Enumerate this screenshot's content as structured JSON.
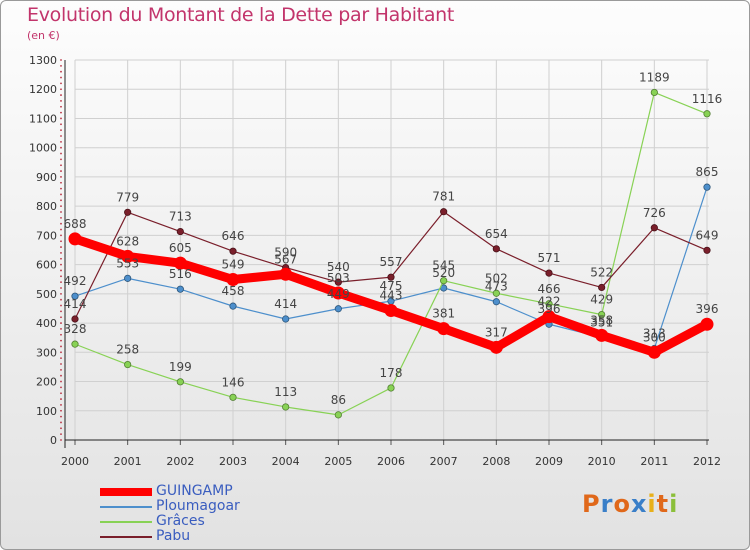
{
  "header": {
    "title": "Evolution du Montant de la Dette par Habitant",
    "subtitle": "(en €)"
  },
  "colors": {
    "title": "#c2346b",
    "axis_text": "#333333",
    "legend_text": "#3a5dbf"
  },
  "logo": {
    "text": "Proxiti",
    "letter_colors": [
      "#e0681a",
      "#3a7fc8",
      "#e0681a",
      "#3a7fc8",
      "#e8b01a",
      "#e0681a",
      "#8bbf3a"
    ]
  },
  "chart_data": {
    "type": "line",
    "x": [
      "2000",
      "2001",
      "2002",
      "2003",
      "2004",
      "2005",
      "2006",
      "2007",
      "2008",
      "2009",
      "2010",
      "2011",
      "2012"
    ],
    "ylim": [
      0,
      1300
    ],
    "yticks": [
      0,
      100,
      200,
      300,
      400,
      500,
      600,
      700,
      800,
      900,
      1000,
      1100,
      1200,
      1300
    ],
    "grid": true,
    "legend_position": "bottom-left",
    "series": [
      {
        "name": "GUINGAMP",
        "color": "#ff0000",
        "values": [
          688,
          628,
          605,
          549,
          567,
          503,
          443,
          381,
          317,
          422,
          358,
          300,
          396
        ],
        "labels": [
          "688",
          "628",
          "605",
          "549",
          "567",
          "503",
          "443",
          "381",
          "317",
          "422",
          "358",
          "300",
          "396"
        ]
      },
      {
        "name": "Ploumagoar",
        "color": "#4d8fcc",
        "values": [
          492,
          553,
          516,
          458,
          414,
          449,
          475,
          520,
          473,
          396,
          351,
          313,
          865
        ],
        "labels": [
          "492",
          "553",
          "516",
          "458",
          "414",
          "449",
          "475",
          "520",
          "473",
          "396",
          "351",
          "313",
          "865"
        ]
      },
      {
        "name": "Grâces",
        "color": "#88d255",
        "values": [
          328,
          258,
          199,
          146,
          113,
          86,
          178,
          545,
          502,
          466,
          429,
          1189,
          1116
        ],
        "labels": [
          "328",
          "258",
          "199",
          "146",
          "113",
          "86",
          "178",
          "545",
          "502",
          "466",
          "429",
          "1189",
          "1116"
        ]
      },
      {
        "name": "Pabu",
        "color": "#7a1f2b",
        "values": [
          414,
          779,
          713,
          646,
          590,
          540,
          557,
          781,
          654,
          571,
          522,
          726,
          649
        ],
        "labels": [
          "414",
          "779",
          "713",
          "646",
          "590",
          "540",
          "557",
          "781",
          "654",
          "571",
          "522",
          "726",
          "649"
        ]
      }
    ]
  }
}
